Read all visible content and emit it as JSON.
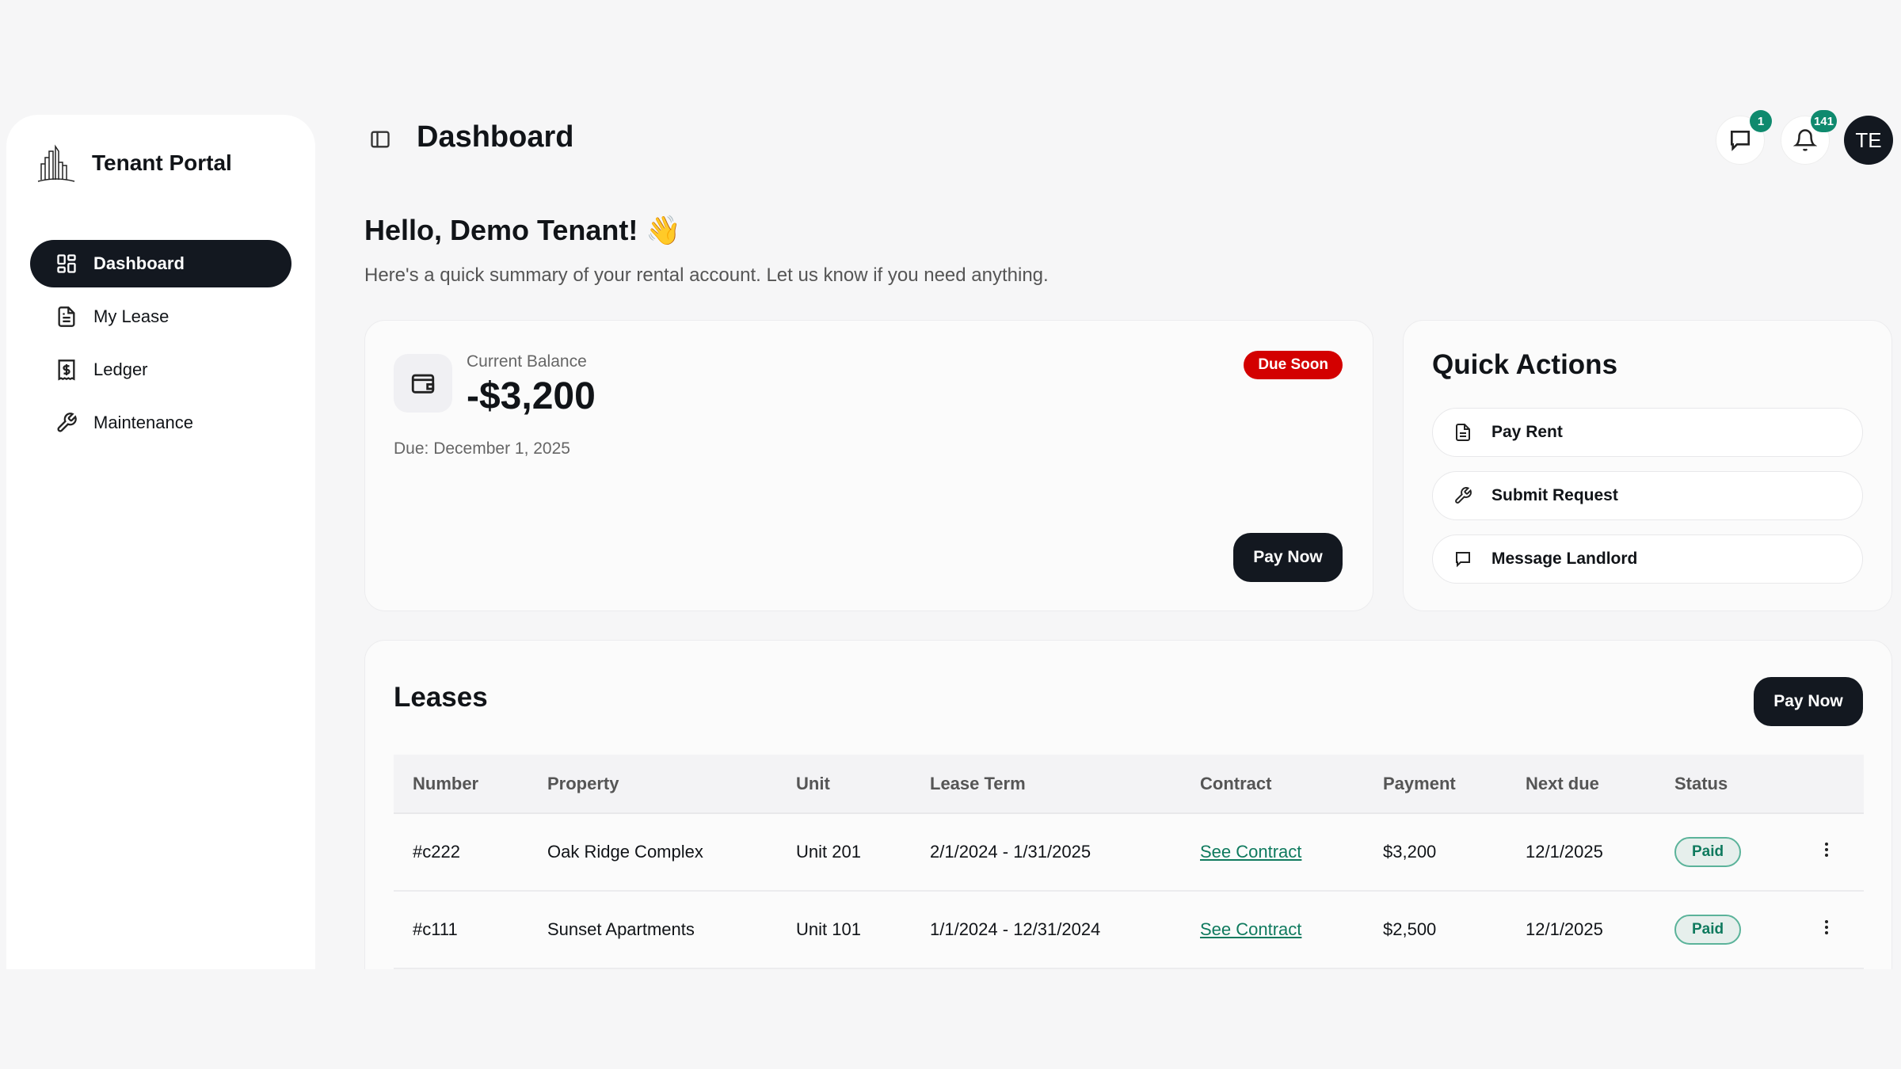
{
  "sidebar": {
    "brand": "Tenant Portal",
    "items": [
      {
        "label": "Dashboard",
        "icon": "grid-icon",
        "active": true
      },
      {
        "label": "My Lease",
        "icon": "document-icon"
      },
      {
        "label": "Ledger",
        "icon": "receipt-dollar-icon"
      },
      {
        "label": "Maintenance",
        "icon": "wrench-icon"
      }
    ]
  },
  "header": {
    "title": "Dashboard",
    "messages_count": "1",
    "notifications_count": "141",
    "avatar_initials": "TE"
  },
  "greeting": {
    "title": "Hello, Demo Tenant! 👋",
    "subtitle": "Here's a quick summary of your rental account. Let us know if you need anything."
  },
  "balance": {
    "label": "Current Balance",
    "amount": "-$3,200",
    "due": "Due: December 1, 2025",
    "status": "Due Soon",
    "pay_label": "Pay Now"
  },
  "quick_actions": {
    "title": "Quick Actions",
    "items": [
      {
        "label": "Pay Rent",
        "icon": "document-icon"
      },
      {
        "label": "Submit Request",
        "icon": "wrench-icon"
      },
      {
        "label": "Message Landlord",
        "icon": "chat-icon"
      }
    ]
  },
  "leases": {
    "title": "Leases",
    "pay_label": "Pay Now",
    "columns": [
      "Number",
      "Property",
      "Unit",
      "Lease Term",
      "Contract",
      "Payment",
      "Next due",
      "Status"
    ],
    "rows": [
      {
        "number": "#c222",
        "property": "Oak Ridge Complex",
        "unit": "Unit 201",
        "term": "2/1/2024 - 1/31/2025",
        "contract": "See Contract",
        "payment": "$3,200",
        "next_due": "12/1/2025",
        "status": "Paid"
      },
      {
        "number": "#c111",
        "property": "Sunset Apartments",
        "unit": "Unit 101",
        "term": "1/1/2024 - 12/31/2024",
        "contract": "See Contract",
        "payment": "$2,500",
        "next_due": "12/1/2025",
        "status": "Paid"
      }
    ]
  },
  "colors": {
    "accent": "#131820",
    "success": "#0f8a6e",
    "danger": "#d30000"
  }
}
